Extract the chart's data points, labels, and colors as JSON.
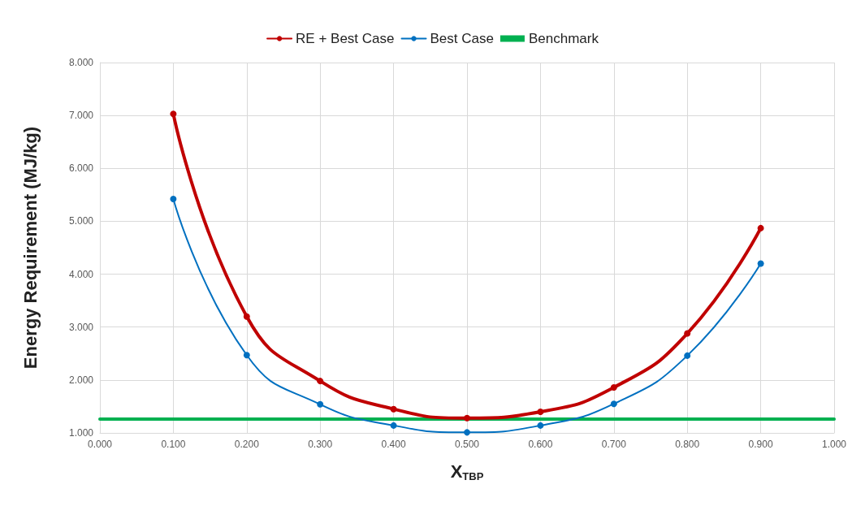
{
  "chart_data": {
    "type": "line",
    "xlabel": "X$_{TBP}$",
    "ylabel": "Energy Requirement (MJ/kg)",
    "x": [
      0.1,
      0.2,
      0.3,
      0.4,
      0.5,
      0.6,
      0.7,
      0.8,
      0.9
    ],
    "series": [
      {
        "name": "RE + Best Case",
        "color": "#c00000",
        "values": [
          7.03,
          3.2,
          1.98,
          1.45,
          1.28,
          1.4,
          1.86,
          2.88,
          4.87
        ]
      },
      {
        "name": "Best Case",
        "color": "#0070c0",
        "values": [
          5.42,
          2.47,
          1.54,
          1.14,
          1.01,
          1.14,
          1.55,
          2.46,
          4.2
        ]
      },
      {
        "name": "Benchmark",
        "color": "#00b050",
        "x": [
          0,
          1
        ],
        "values": [
          1.26,
          1.26
        ],
        "marker": "none"
      }
    ],
    "xlim": [
      0,
      1
    ],
    "xticks": [
      {
        "value": 0,
        "label": "0.000"
      },
      {
        "value": 0.1,
        "label": "0.100"
      },
      {
        "value": 0.2,
        "label": "0.200"
      },
      {
        "value": 0.3,
        "label": "0.300"
      },
      {
        "value": 0.4,
        "label": "0.400"
      },
      {
        "value": 0.5,
        "label": "0.500"
      },
      {
        "value": 0.6,
        "label": "0.600"
      },
      {
        "value": 0.7,
        "label": "0.700"
      },
      {
        "value": 0.8,
        "label": "0.800"
      },
      {
        "value": 0.9,
        "label": "0.900"
      },
      {
        "value": 1,
        "label": "1.000"
      }
    ],
    "ylim": [
      1,
      8
    ],
    "yticks": [
      {
        "value": 1,
        "label": "1.000"
      },
      {
        "value": 2,
        "label": "2.000"
      },
      {
        "value": 3,
        "label": "3.000"
      },
      {
        "value": 4,
        "label": "4.000"
      },
      {
        "value": 5,
        "label": "5.000"
      },
      {
        "value": 6,
        "label": "6.000"
      },
      {
        "value": 7,
        "label": "7.000"
      },
      {
        "value": 8,
        "label": "8.000"
      }
    ],
    "grid": true,
    "legend": "top",
    "marker": "circle",
    "line_style": "solid"
  }
}
